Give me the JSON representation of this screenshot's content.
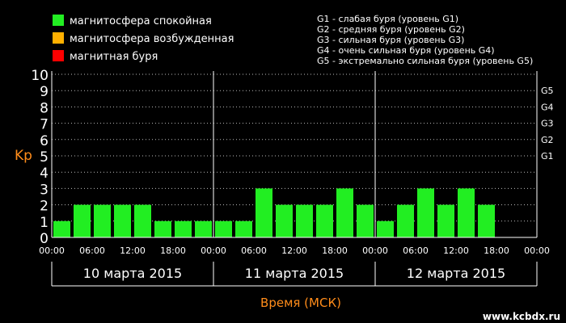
{
  "legend": [
    {
      "label": "магнитосфера спокойная",
      "color": "#22ee22"
    },
    {
      "label": "магнитосфера возбужденная",
      "color": "#ffb000"
    },
    {
      "label": "магнитная буря",
      "color": "#ff0000"
    }
  ],
  "g_legend": [
    "G1 - слабая буря (уровень G1)",
    "G2 - средняя буря (уровень G2)",
    "G3 - сильная буря (уровень G3)",
    "G4 - очень сильная буря (уровень G4)",
    "G5 - экстремально сильная буря (уровень G5)"
  ],
  "watermark": "www.kcbdx.ru",
  "chart_data": {
    "type": "bar",
    "ylabel": "Kp",
    "xlabel": "Время (МСК)",
    "ylim": [
      0,
      10
    ],
    "yticks": [
      "0",
      "1",
      "2",
      "3",
      "4",
      "5",
      "6",
      "7",
      "8",
      "9",
      "10"
    ],
    "g_levels": [
      {
        "label": "G1",
        "value": 5
      },
      {
        "label": "G2",
        "value": 6
      },
      {
        "label": "G3",
        "value": 7
      },
      {
        "label": "G4",
        "value": 8
      },
      {
        "label": "G5",
        "value": 9
      }
    ],
    "time_ticks": [
      "00:00",
      "06:00",
      "12:00",
      "18:00",
      "00:00",
      "06:00",
      "12:00",
      "18:00",
      "00:00",
      "06:00",
      "12:00",
      "18:00",
      "00:00"
    ],
    "days": [
      "10 марта 2015",
      "11 марта 2015",
      "12 марта 2015"
    ],
    "grid": true,
    "bar_color": "#22ee22",
    "values": [
      1,
      2,
      2,
      2,
      2,
      1,
      1,
      1,
      1,
      1,
      3,
      2,
      2,
      2,
      3,
      2,
      1,
      2,
      3,
      2,
      3,
      2
    ]
  }
}
